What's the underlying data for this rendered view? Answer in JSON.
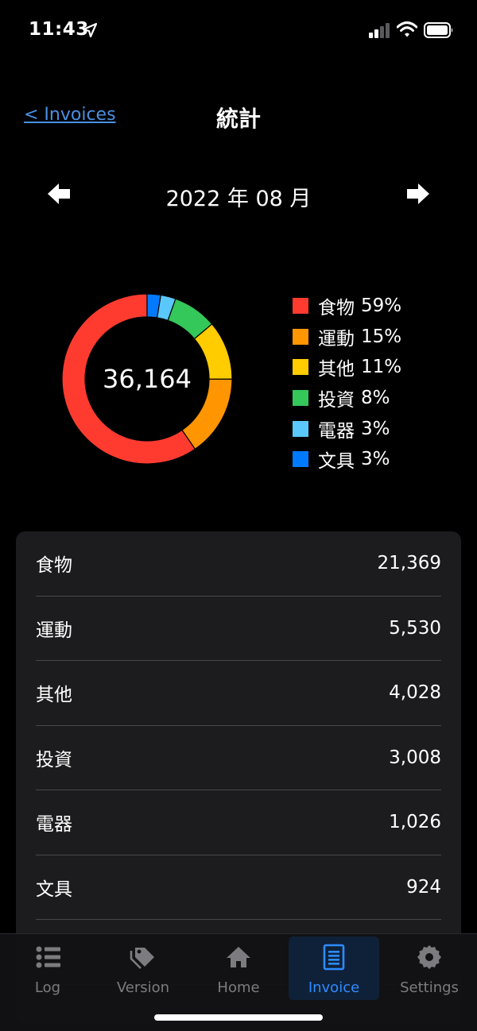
{
  "status_bar": {
    "time": "11:43"
  },
  "nav": {
    "back_label": "< Invoices",
    "title": "統計"
  },
  "month": {
    "label": "2022 年 08 月"
  },
  "chart_data": {
    "type": "pie",
    "total_label": "36,164",
    "categories": [
      "食物",
      "運動",
      "其他",
      "投資",
      "電器",
      "文具"
    ],
    "values": [
      21369,
      5530,
      4028,
      3008,
      1026,
      924
    ],
    "percent_labels": [
      "59%",
      "15%",
      "11%",
      "8%",
      "3%",
      "3%"
    ],
    "colors": [
      "#ff3b30",
      "#ff9500",
      "#ffcc00",
      "#34c759",
      "#5ac8fa",
      "#007aff"
    ]
  },
  "list": [
    {
      "name": "食物",
      "amount": "21,369"
    },
    {
      "name": "運動",
      "amount": "5,530"
    },
    {
      "name": "其他",
      "amount": "4,028"
    },
    {
      "name": "投資",
      "amount": "3,008"
    },
    {
      "name": "電器",
      "amount": "1,026"
    },
    {
      "name": "文具",
      "amount": "924"
    },
    {
      "name": "",
      "amount": ""
    }
  ],
  "tabs": [
    {
      "label": "Log",
      "icon": "list-icon",
      "active": false
    },
    {
      "label": "Version",
      "icon": "tags-icon",
      "active": false
    },
    {
      "label": "Home",
      "icon": "home-icon",
      "active": false
    },
    {
      "label": "Invoice",
      "icon": "document-icon",
      "active": true
    },
    {
      "label": "Settings",
      "icon": "gear-icon",
      "active": false
    }
  ]
}
